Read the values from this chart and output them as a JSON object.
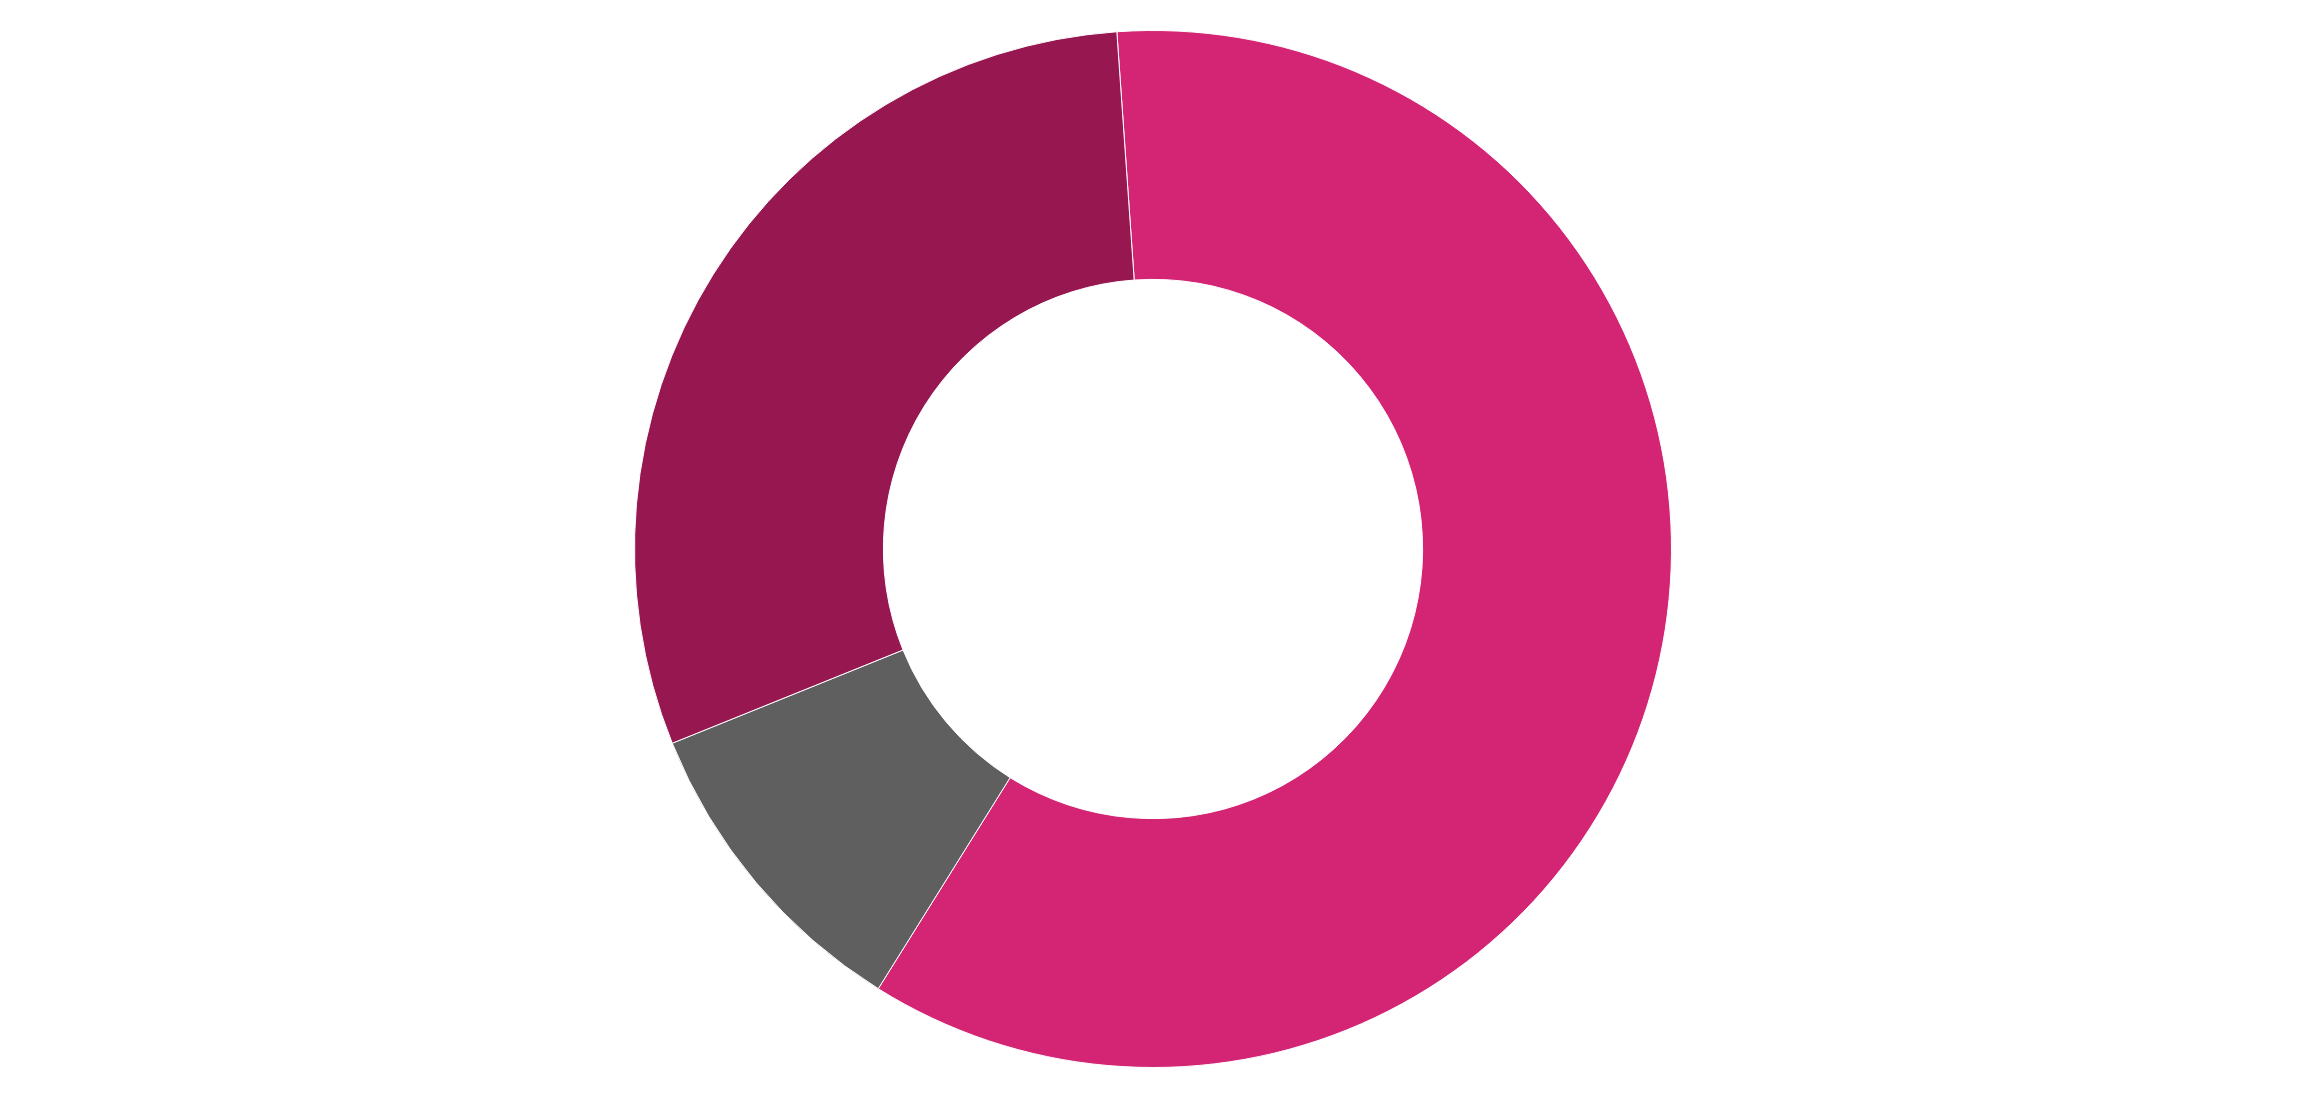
{
  "chart_data": {
    "type": "donut",
    "categories": [
      null,
      null,
      null
    ],
    "values": [
      60,
      10,
      30
    ],
    "colors": [
      "#d42574",
      "#5f5f5f",
      "#971750"
    ],
    "legend": false
  }
}
